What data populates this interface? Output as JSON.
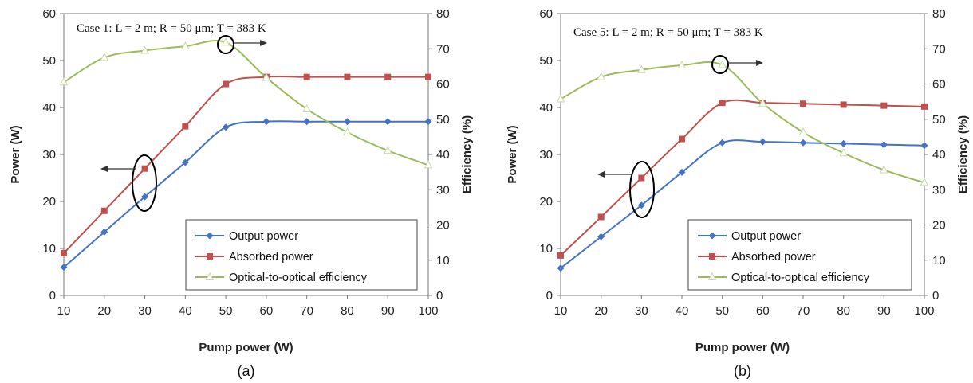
{
  "charts": [
    {
      "panel_label": "(a)",
      "annotation": "Case 1: L = 2 m; R = 50 μm; T = 383 K",
      "xlabel": "Pump power (W)",
      "ylabel_left": "Power (W)",
      "ylabel_right": "Efficiency (%)",
      "x_ticks": [
        "10",
        "20",
        "30",
        "40",
        "50",
        "60",
        "70",
        "80",
        "90",
        "100"
      ],
      "y_left_ticks": [
        "0",
        "10",
        "20",
        "30",
        "40",
        "50",
        "60"
      ],
      "y_right_ticks": [
        "0",
        "10",
        "20",
        "30",
        "40",
        "50",
        "60",
        "70",
        "80"
      ],
      "legend": [
        "Output power",
        "Absorbed power",
        "Optical-to-optical efficiency"
      ]
    },
    {
      "panel_label": "(b)",
      "annotation": "Case 5: L = 2 m; R = 50 μm; T = 383 K",
      "xlabel": "Pump power (W)",
      "ylabel_left": "Power (W)",
      "ylabel_right": "Efficiency (%)",
      "x_ticks": [
        "10",
        "20",
        "30",
        "40",
        "50",
        "60",
        "70",
        "80",
        "90",
        "100"
      ],
      "y_left_ticks": [
        "0",
        "10",
        "20",
        "30",
        "40",
        "50",
        "60"
      ],
      "y_right_ticks": [
        "0",
        "10",
        "20",
        "30",
        "40",
        "50",
        "60",
        "70",
        "80"
      ],
      "legend": [
        "Output power",
        "Absorbed power",
        "Optical-to-optical efficiency"
      ]
    }
  ],
  "chart_data": [
    {
      "type": "line",
      "x": [
        10,
        20,
        30,
        40,
        50,
        60,
        70,
        80,
        90,
        100
      ],
      "xlim": [
        10,
        100
      ],
      "ylim_left": [
        0,
        60
      ],
      "ylim_right": [
        0,
        80
      ],
      "grid": false,
      "legend_position": "bottom-right",
      "series": [
        {
          "name": "Output power",
          "axis": "left",
          "color": "#4472C4",
          "marker": "diamond",
          "values": [
            6,
            13.5,
            21,
            28.3,
            35.8,
            37,
            37,
            37,
            37,
            37
          ]
        },
        {
          "name": "Absorbed power",
          "axis": "left",
          "color": "#C0504D",
          "marker": "square",
          "values": [
            9,
            18,
            27,
            36,
            45,
            46.5,
            46.5,
            46.5,
            46.5,
            46.5
          ]
        },
        {
          "name": "Optical-to-optical efficiency",
          "axis": "right",
          "color": "#9BBB59",
          "marker": "triangle",
          "values": [
            60.5,
            67.5,
            69.5,
            70.7,
            71.8,
            61.8,
            52.9,
            46.3,
            41.1,
            37.0
          ]
        }
      ]
    },
    {
      "type": "line",
      "x": [
        10,
        20,
        30,
        40,
        50,
        60,
        70,
        80,
        90,
        100
      ],
      "xlim": [
        10,
        100
      ],
      "ylim_left": [
        0,
        60
      ],
      "ylim_right": [
        0,
        80
      ],
      "grid": false,
      "legend_position": "bottom-right",
      "series": [
        {
          "name": "Output power",
          "axis": "left",
          "color": "#4472C4",
          "marker": "diamond",
          "values": [
            5.8,
            12.5,
            19.2,
            26.2,
            32.5,
            32.7,
            32.5,
            32.3,
            32.1,
            31.9
          ]
        },
        {
          "name": "Absorbed power",
          "axis": "left",
          "color": "#C0504D",
          "marker": "square",
          "values": [
            8.5,
            16.7,
            25,
            33.3,
            41,
            41,
            40.8,
            40.6,
            40.4,
            40.2
          ]
        },
        {
          "name": "Optical-to-optical efficiency",
          "axis": "right",
          "color": "#9BBB59",
          "marker": "triangle",
          "values": [
            55.7,
            62.0,
            64.0,
            65.3,
            65.4,
            54.5,
            46.3,
            40.4,
            35.6,
            32.0
          ]
        }
      ]
    }
  ]
}
